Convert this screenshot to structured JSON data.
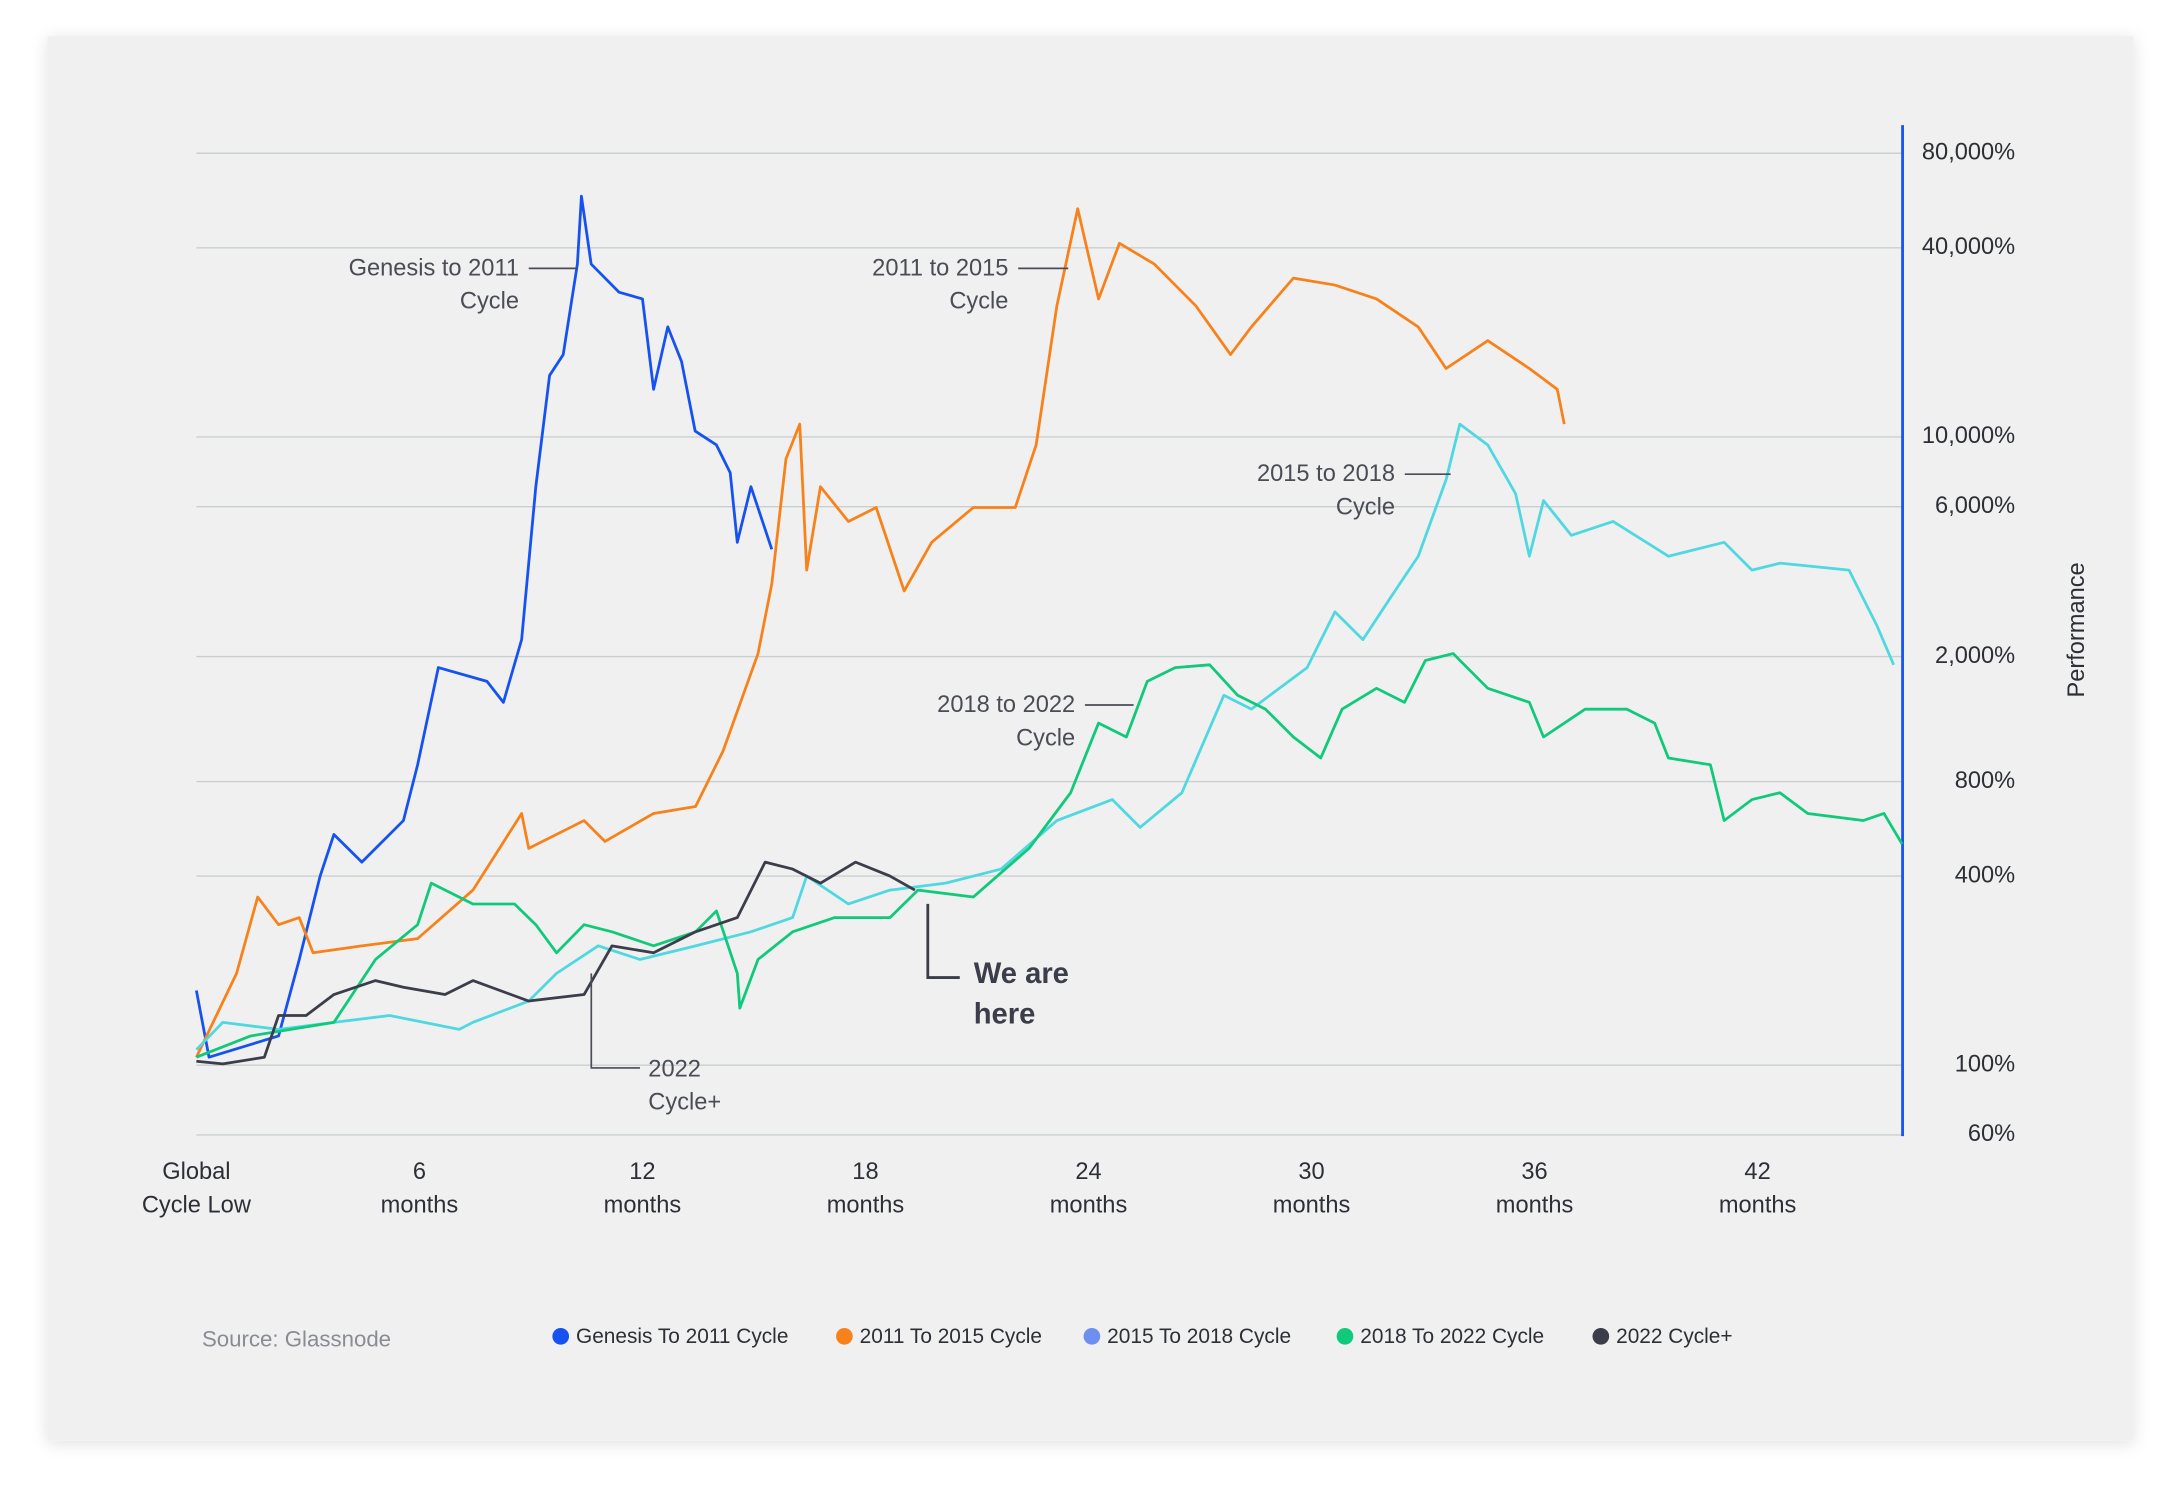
{
  "chart_data": {
    "type": "line",
    "y_label": "Performance",
    "source": "Source: Glassnode",
    "log_y": true,
    "grid": true,
    "y_axis_side": "right",
    "xlim": [
      0,
      45.9
    ],
    "ylim": [
      59.5,
      98300
    ],
    "xticks": [
      {
        "value": 0,
        "label": "Global\nCycle Low"
      },
      {
        "value": 6,
        "label": "6\nmonths"
      },
      {
        "value": 12,
        "label": "12\nmonths"
      },
      {
        "value": 18,
        "label": "18\nmonths"
      },
      {
        "value": 24,
        "label": "24\nmonths"
      },
      {
        "value": 30,
        "label": "30\nmonths"
      },
      {
        "value": 36,
        "label": "36\nmonths"
      },
      {
        "value": 42,
        "label": "42\nmonths"
      }
    ],
    "yticks": [
      {
        "value": 60,
        "label": "60%"
      },
      {
        "value": 100,
        "label": "100%"
      },
      {
        "value": 400,
        "label": "400%"
      },
      {
        "value": 800,
        "label": "800%"
      },
      {
        "value": 2000,
        "label": "2,000%"
      },
      {
        "value": 6000,
        "label": "6,000%"
      },
      {
        "value": 10000,
        "label": "10,000%"
      },
      {
        "value": 40000,
        "label": "40,000%"
      },
      {
        "value": 80000,
        "label": "80,000%"
      }
    ],
    "series": [
      {
        "name": "Genesis To 2011 Cycle",
        "color": "#1652f0",
        "legend_color": "#1652f0",
        "x": [
          0,
          0.34,
          2.21,
          2.77,
          3.33,
          3.7,
          4.45,
          5.57,
          5.95,
          6.51,
          7.82,
          8.26,
          8.75,
          9.13,
          9.5,
          9.87,
          10.25,
          10.36,
          10.62,
          11.37,
          12.0,
          12.3,
          12.68,
          13.05,
          13.42,
          13.99,
          14.36,
          14.55,
          14.92,
          15.48
        ],
        "values": [
          173,
          106,
          124,
          217,
          400,
          543,
          443,
          601,
          904,
          1845,
          1667,
          1430,
          2263,
          6945,
          15700,
          18290,
          35500,
          58400,
          35500,
          28900,
          27500,
          14170,
          22400,
          17380,
          10440,
          9430,
          7690,
          4620,
          6945,
          4390
        ]
      },
      {
        "name": "2011 To 2015 Cycle",
        "color": "#f7821b",
        "legend_color": "#f7821b",
        "x": [
          0,
          1.08,
          1.65,
          2.21,
          2.77,
          3.14,
          4.45,
          5.95,
          7.44,
          8.75,
          8.94,
          10.43,
          10.99,
          12.3,
          13.43,
          14.17,
          15.11,
          15.48,
          15.86,
          16.23,
          16.42,
          16.79,
          17.54,
          18.29,
          19.04,
          19.78,
          20.9,
          22.03,
          22.59,
          23.15,
          23.71,
          24.27,
          24.83,
          25.77,
          26.89,
          27.82,
          28.38,
          29.51,
          30.63,
          31.75,
          32.87,
          33.62,
          34.74,
          35.86,
          36.61,
          36.8
        ],
        "values": [
          106,
          196,
          343,
          280,
          295,
          228,
          240,
          253,
          361,
          633,
          490,
          601,
          516,
          633,
          666,
          1001,
          2044,
          3402,
          8515,
          10990,
          3766,
          6945,
          5382,
          5960,
          3234,
          4620,
          5960,
          5960,
          9430,
          26130,
          53300,
          27500,
          41340,
          35500,
          26130,
          18290,
          22400,
          32040,
          30440,
          27500,
          22400,
          16520,
          20250,
          16520,
          14170,
          10990
        ]
      },
      {
        "name": "2015 To 2018 Cycle",
        "color": "#4fd8e0",
        "legend_color": "#6f8ff0",
        "x": [
          0,
          0.71,
          2.21,
          3.7,
          5.2,
          7.07,
          7.44,
          8.94,
          9.69,
          10.81,
          11.93,
          13.43,
          14.92,
          16.04,
          16.42,
          17.54,
          18.66,
          20.16,
          21.65,
          23.15,
          24.64,
          25.39,
          26.51,
          27.64,
          28.38,
          29.88,
          30.63,
          31.38,
          32.12,
          32.87,
          33.62,
          33.99,
          34.74,
          35.49,
          35.86,
          36.24,
          36.99,
          38.11,
          39.6,
          41.1,
          41.85,
          42.6,
          44.46,
          45.21,
          45.66
        ],
        "values": [
          112,
          137,
          130,
          137,
          144,
          130,
          137,
          160,
          196,
          240,
          217,
          240,
          266,
          295,
          400,
          326,
          361,
          380,
          421,
          601,
          701,
          572,
          737,
          1505,
          1359,
          1845,
          2774,
          2263,
          3072,
          4170,
          7306,
          10990,
          9430,
          6598,
          4170,
          6272,
          4860,
          5382,
          4170,
          4620,
          3766,
          3965,
          3766,
          2505,
          1883
        ]
      },
      {
        "name": "2018 To 2022 Cycle",
        "color": "#10c97a",
        "legend_color": "#10c97a",
        "x": [
          0,
          1.46,
          3.7,
          4.82,
          5.95,
          6.32,
          7.44,
          8.56,
          9.13,
          9.69,
          10.43,
          11.18,
          12.3,
          13.43,
          13.99,
          14.55,
          14.62,
          15.11,
          16.04,
          17.17,
          18.66,
          19.41,
          20.9,
          22.4,
          23.52,
          24.27,
          25.02,
          25.58,
          26.33,
          27.26,
          28.01,
          28.76,
          29.51,
          30.25,
          30.82,
          31.75,
          32.5,
          33.06,
          33.81,
          34.74,
          35.86,
          36.24,
          37.36,
          38.48,
          39.23,
          39.6,
          40.73,
          41.1,
          41.85,
          42.6,
          43.35,
          44.84,
          45.4,
          45.89
        ],
        "values": [
          106,
          124,
          137,
          217,
          280,
          380,
          326,
          326,
          280,
          228,
          280,
          266,
          240,
          266,
          310,
          196,
          152,
          217,
          266,
          295,
          295,
          361,
          343,
          490,
          737,
          1228,
          1109,
          1667,
          1845,
          1883,
          1505,
          1359,
          1109,
          951,
          1359,
          1584,
          1430,
          1942,
          2044,
          1584,
          1430,
          1109,
          1359,
          1359,
          1228,
          951,
          904,
          601,
          701,
          737,
          633,
          601,
          633,
          506
        ]
      },
      {
        "name": "2022 Cycle+",
        "color": "#3b3d4a",
        "legend_color": "#3b3d4a",
        "x": [
          0,
          0.71,
          1.83,
          2.21,
          2.95,
          3.7,
          4.82,
          5.57,
          6.69,
          7.44,
          8.94,
          10.43,
          11.18,
          12.3,
          13.43,
          14.55,
          15.3,
          16.04,
          16.79,
          17.73,
          18.66,
          19.33
        ],
        "values": [
          103,
          101,
          106,
          144,
          144,
          168,
          186,
          177,
          168,
          186,
          160,
          168,
          240,
          228,
          266,
          295,
          443,
          421,
          380,
          443,
          400,
          361
        ]
      }
    ],
    "annotations": [
      {
        "text": "Genesis to 2011\nCycle"
      },
      {
        "text": "2011 to 2015\nCycle"
      },
      {
        "text": "2015 to 2018\nCycle"
      },
      {
        "text": "2018 to 2022\nCycle"
      },
      {
        "text": "2022\nCycle+"
      },
      {
        "text": "We are\nhere"
      }
    ]
  }
}
